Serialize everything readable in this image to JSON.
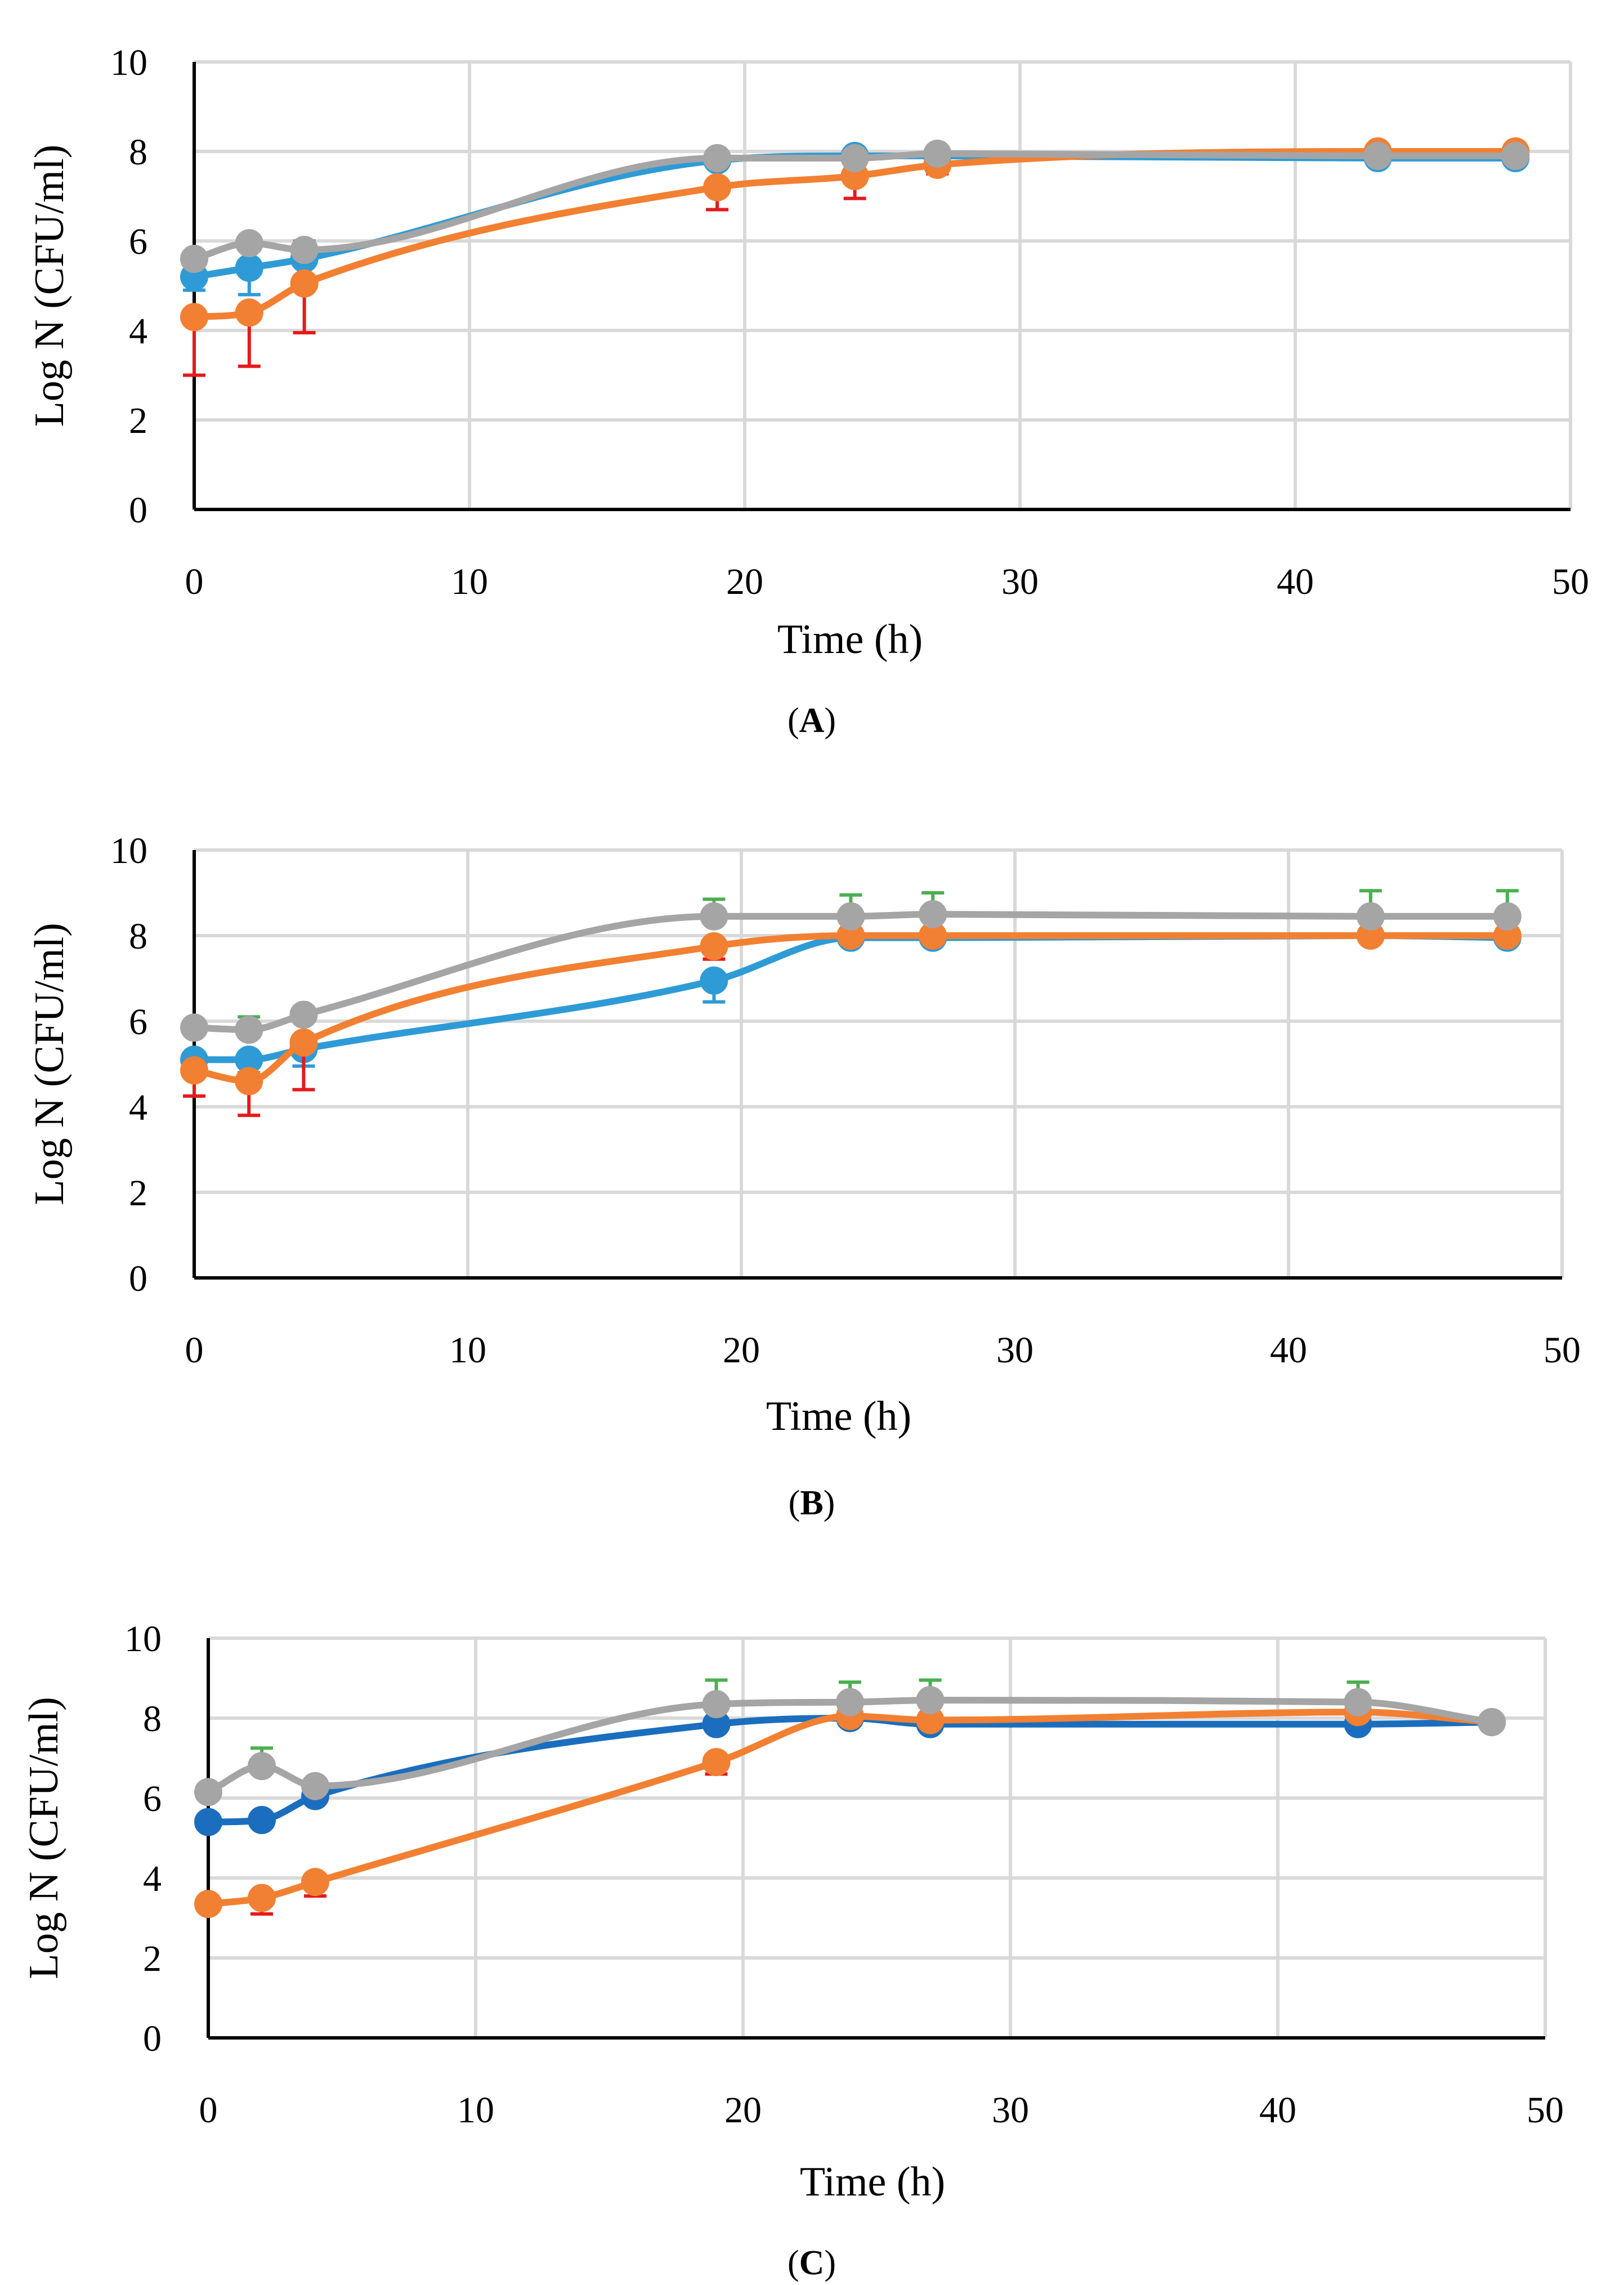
{
  "figure": {
    "background": "#ffffff",
    "grid_color": "#d9d9d9",
    "axis_color": "#000000"
  },
  "chart_data": [
    {
      "type": "line",
      "panel_label": "A",
      "xlabel": "Time (h)",
      "ylabel": "Log N (CFU/ml)",
      "xlim": [
        0,
        50
      ],
      "ylim": [
        0,
        10
      ],
      "xticks": [
        "0",
        "10",
        "20",
        "30",
        "40",
        "50"
      ],
      "yticks": [
        "0",
        "2",
        "4",
        "6",
        "8",
        "10"
      ],
      "grid": true,
      "x": [
        0,
        2,
        4,
        19,
        24,
        27,
        43,
        48
      ],
      "series": [
        {
          "color": "#2e9bd6",
          "error_color": "#2e9bd6",
          "values": [
            5.2,
            5.4,
            5.6,
            7.8,
            7.9,
            7.9,
            7.85,
            7.85
          ],
          "errors": [
            0.3,
            0.6,
            0.5,
            0,
            0,
            0,
            0,
            0
          ]
        },
        {
          "color": "#f28032",
          "error_color": "#e41a1c",
          "values": [
            4.3,
            4.4,
            5.05,
            7.2,
            7.45,
            7.7,
            8.0,
            8.0
          ],
          "errors": [
            1.3,
            1.2,
            1.1,
            0.5,
            0.5,
            0.2,
            0,
            0
          ]
        },
        {
          "color": "#a5a5a5",
          "error_color": "#4caf50",
          "values": [
            5.6,
            5.95,
            5.8,
            7.85,
            7.85,
            7.95,
            7.9,
            7.9
          ],
          "errors": [
            0,
            0.1,
            0.2,
            0,
            0,
            0,
            0,
            0
          ]
        }
      ]
    },
    {
      "type": "line",
      "panel_label": "B",
      "xlabel": "Time (h)",
      "ylabel": "Log N (CFU/ml)",
      "xlim": [
        0,
        50
      ],
      "ylim": [
        0,
        10
      ],
      "xticks": [
        "0",
        "10",
        "20",
        "30",
        "40",
        "50"
      ],
      "yticks": [
        "0",
        "2",
        "4",
        "6",
        "8",
        "10"
      ],
      "grid": true,
      "x": [
        0,
        2,
        4,
        19,
        24,
        27,
        43,
        48
      ],
      "series": [
        {
          "color": "#2e9bd6",
          "error_color": "#2e9bd6",
          "values": [
            5.1,
            5.1,
            5.35,
            6.95,
            7.95,
            7.95,
            8.0,
            7.95
          ],
          "errors": [
            0.3,
            0.3,
            0.4,
            0.5,
            0,
            0,
            0,
            0
          ]
        },
        {
          "color": "#f28032",
          "error_color": "#e41a1c",
          "values": [
            4.85,
            4.6,
            5.5,
            7.75,
            8.0,
            8.0,
            8.0,
            8.0
          ],
          "errors": [
            0.6,
            0.8,
            1.1,
            0.3,
            0,
            0,
            0,
            0
          ]
        },
        {
          "color": "#a5a5a5",
          "error_color": "#4caf50",
          "values": [
            5.85,
            5.8,
            6.15,
            8.45,
            8.45,
            8.5,
            8.45,
            8.45
          ],
          "errors": [
            0,
            0.3,
            0,
            0.4,
            0.5,
            0.5,
            0.6,
            0.6
          ]
        }
      ]
    },
    {
      "type": "line",
      "panel_label": "C",
      "xlabel": "Time (h)",
      "ylabel": "Log N (CFU/ml)",
      "xlim": [
        0,
        50
      ],
      "ylim": [
        0,
        10
      ],
      "xticks": [
        "0",
        "10",
        "20",
        "30",
        "40",
        "50"
      ],
      "yticks": [
        "0",
        "2",
        "4",
        "6",
        "8",
        "10"
      ],
      "grid": true,
      "x": [
        0,
        2,
        4,
        19,
        24,
        27,
        43,
        48
      ],
      "series": [
        {
          "color": "#1a6ebd",
          "error_color": "#1a6ebd",
          "values": [
            5.4,
            5.45,
            6.05,
            7.85,
            8.0,
            7.85,
            7.85,
            7.9
          ],
          "errors": [
            0,
            0.1,
            0.1,
            0.1,
            0,
            0,
            0,
            0
          ]
        },
        {
          "color": "#f28032",
          "error_color": "#e41a1c",
          "values": [
            3.35,
            3.5,
            3.9,
            6.9,
            8.05,
            7.95,
            8.15,
            7.9
          ],
          "errors": [
            0,
            0.4,
            0.35,
            0.3,
            0,
            0,
            0,
            0
          ]
        },
        {
          "color": "#a5a5a5",
          "error_color": "#4caf50",
          "values": [
            6.15,
            6.8,
            6.3,
            8.35,
            8.4,
            8.45,
            8.4,
            7.9
          ],
          "errors": [
            0,
            0.45,
            0,
            0.6,
            0.5,
            0.5,
            0.5,
            0
          ]
        }
      ]
    }
  ]
}
